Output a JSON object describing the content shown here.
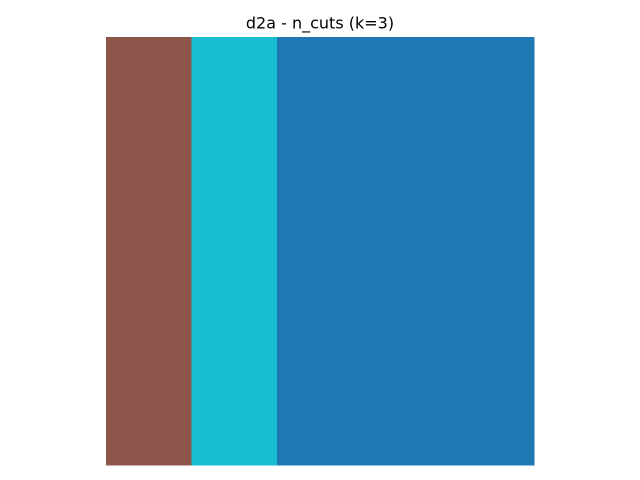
{
  "chart_data": {
    "type": "image",
    "title": "d2a - n_cuts (k=3)",
    "colors": [
      "#8c564b",
      "#17becf",
      "#1f77b4"
    ],
    "values": [
      [
        0,
        1,
        2,
        2,
        2
      ],
      [
        0,
        1,
        2,
        2,
        2
      ],
      [
        0,
        1,
        2,
        2,
        2
      ],
      [
        0,
        1,
        2,
        2,
        2
      ],
      [
        0,
        1,
        2,
        2,
        2
      ]
    ]
  }
}
